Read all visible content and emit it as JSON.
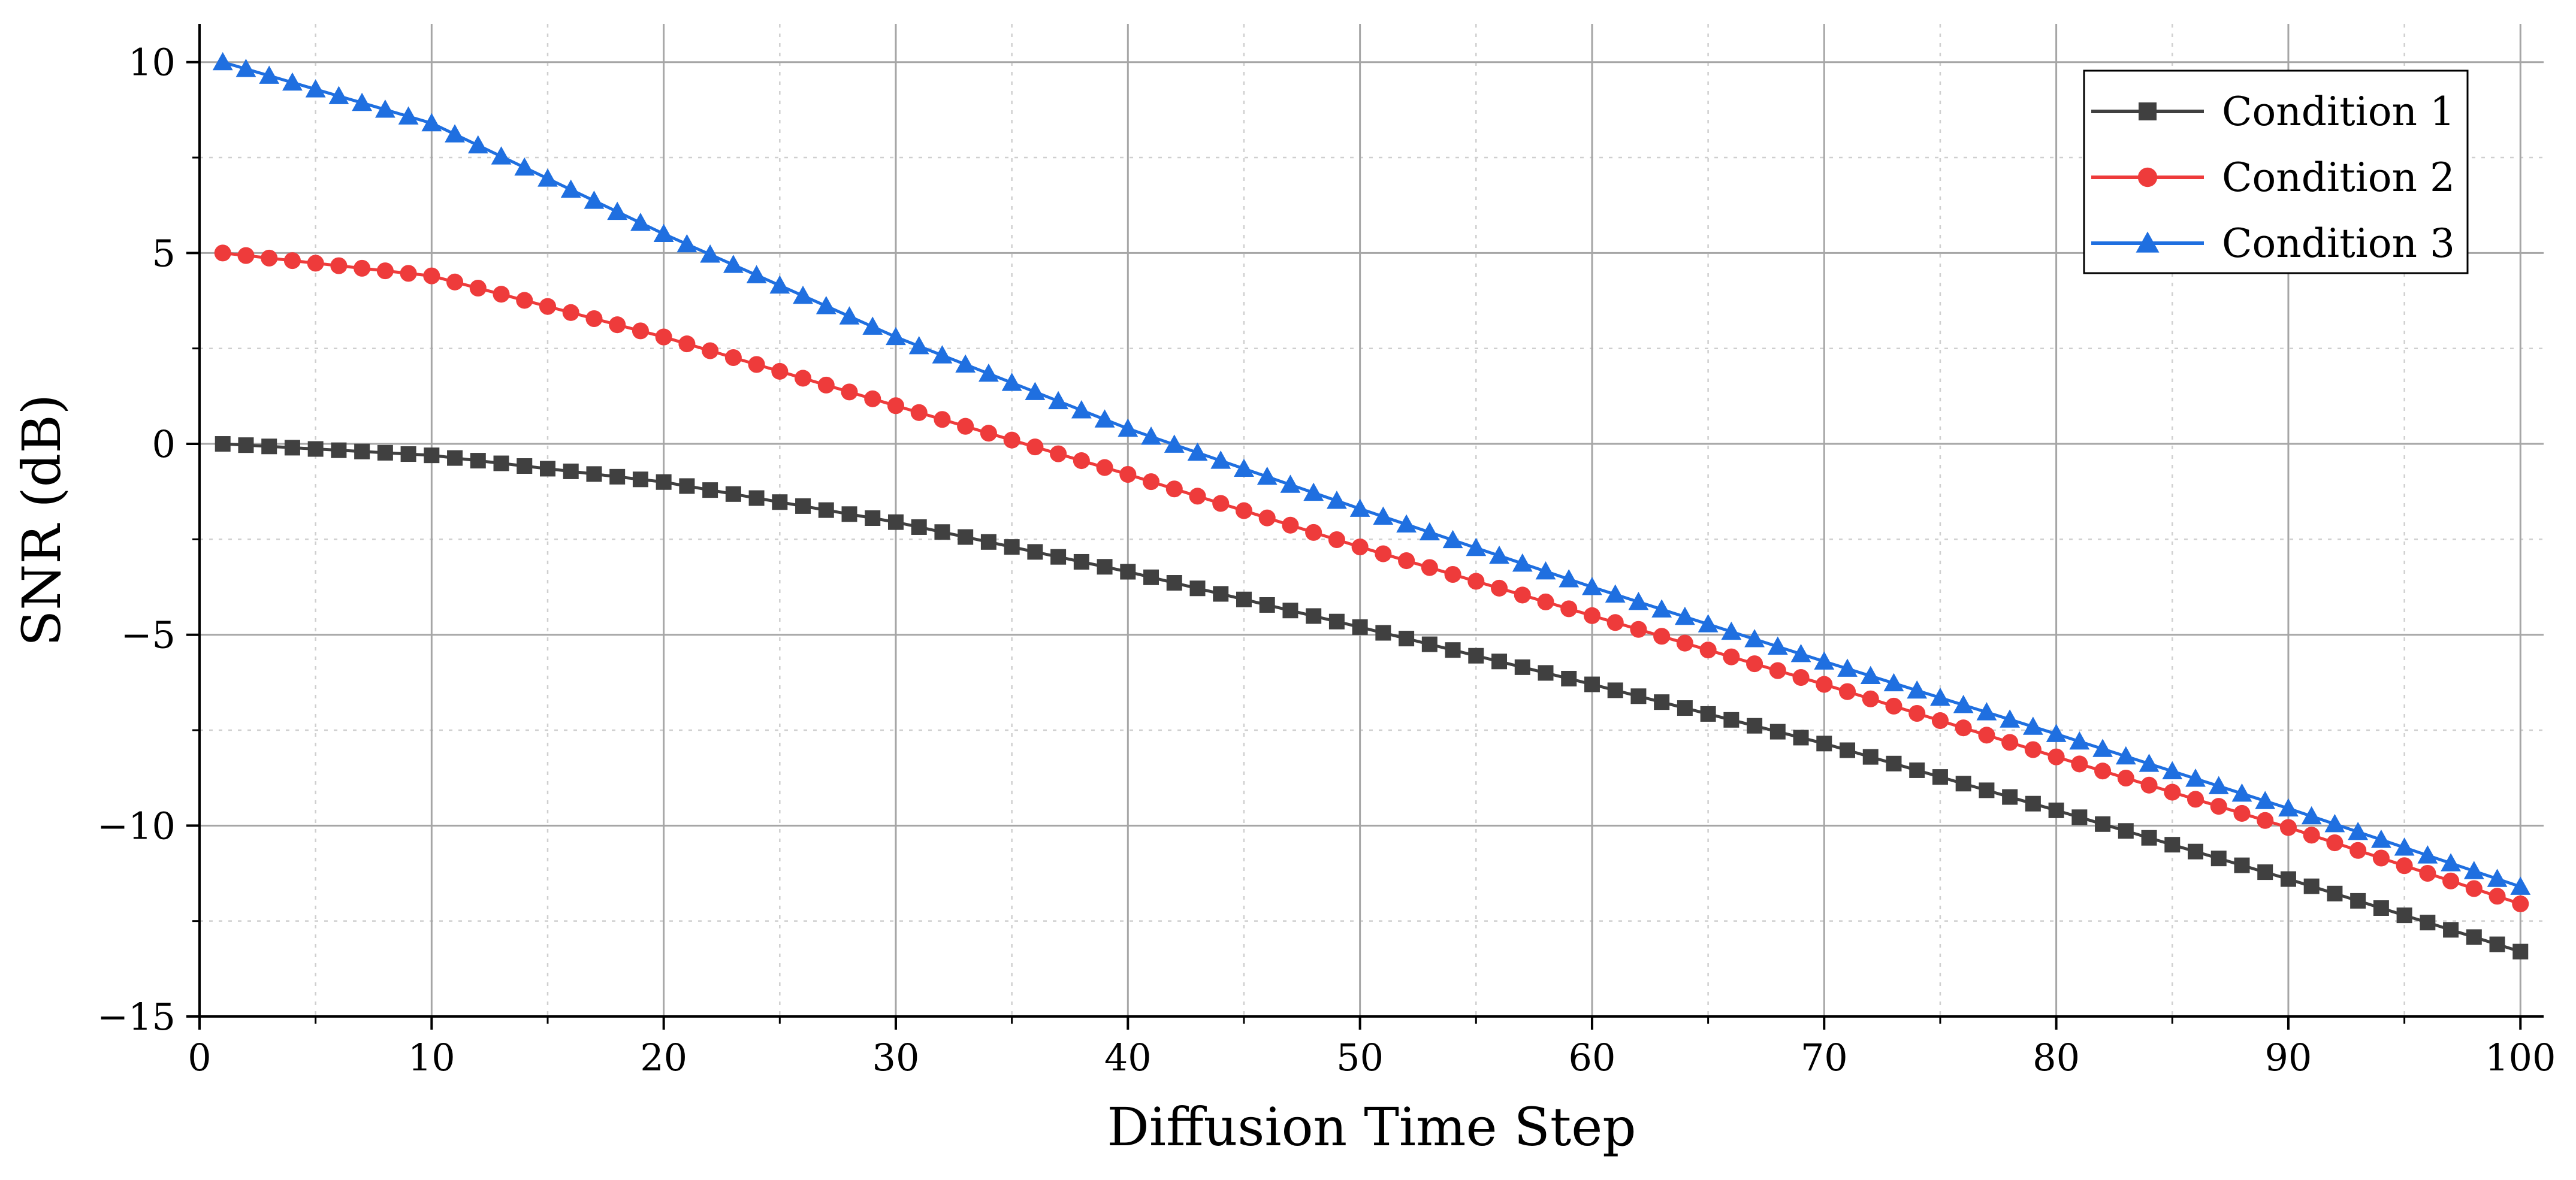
{
  "chart_data": {
    "type": "line",
    "title": "",
    "xlabel": "Diffusion Time Step",
    "ylabel": "SNR (dB)",
    "xlim": [
      0,
      101
    ],
    "ylim": [
      -15,
      11
    ],
    "x_ticks": [
      0,
      10,
      20,
      30,
      40,
      50,
      60,
      70,
      80,
      90,
      100
    ],
    "x_tick_labels": [
      "0",
      "10",
      "20",
      "30",
      "40",
      "50",
      "60",
      "70",
      "80",
      "90",
      "100"
    ],
    "y_ticks": [
      10,
      5,
      0,
      -5,
      -10,
      -15
    ],
    "y_tick_labels": [
      "10",
      "5",
      "0",
      "−10",
      "−15"
    ],
    "y_tick_labels_all": [
      "10",
      "5",
      "0",
      "−5",
      "−10",
      "−15"
    ],
    "grid": true,
    "legend_position": "top-right",
    "x": {
      "start": 1,
      "end": 100,
      "step": 1
    },
    "series": [
      {
        "name": "Condition 1",
        "color": "#404040",
        "marker": "square",
        "anchors": [
          [
            1,
            0
          ],
          [
            10,
            -0.3
          ],
          [
            20,
            -1.0
          ],
          [
            30,
            -2.05
          ],
          [
            40,
            -3.35
          ],
          [
            50,
            -4.8
          ],
          [
            60,
            -6.3
          ],
          [
            70,
            -7.85
          ],
          [
            80,
            -9.6
          ],
          [
            90,
            -11.4
          ],
          [
            100,
            -13.3
          ]
        ]
      },
      {
        "name": "Condition 2",
        "color": "#ee3b3b",
        "marker": "circle",
        "anchors": [
          [
            1,
            5
          ],
          [
            10,
            4.4
          ],
          [
            20,
            2.8
          ],
          [
            30,
            1.0
          ],
          [
            40,
            -0.8
          ],
          [
            50,
            -2.7
          ],
          [
            60,
            -4.5
          ],
          [
            70,
            -6.3
          ],
          [
            80,
            -8.2
          ],
          [
            90,
            -10.05
          ],
          [
            100,
            -12.05
          ]
        ]
      },
      {
        "name": "Condition 3",
        "color": "#1f6fe0",
        "marker": "triangle",
        "anchors": [
          [
            1,
            10
          ],
          [
            10,
            8.4
          ],
          [
            20,
            5.5
          ],
          [
            30,
            2.8
          ],
          [
            40,
            0.4
          ],
          [
            50,
            -1.7
          ],
          [
            60,
            -3.75
          ],
          [
            70,
            -5.7
          ],
          [
            80,
            -7.6
          ],
          [
            90,
            -9.55
          ],
          [
            100,
            -11.6
          ]
        ]
      }
    ]
  }
}
